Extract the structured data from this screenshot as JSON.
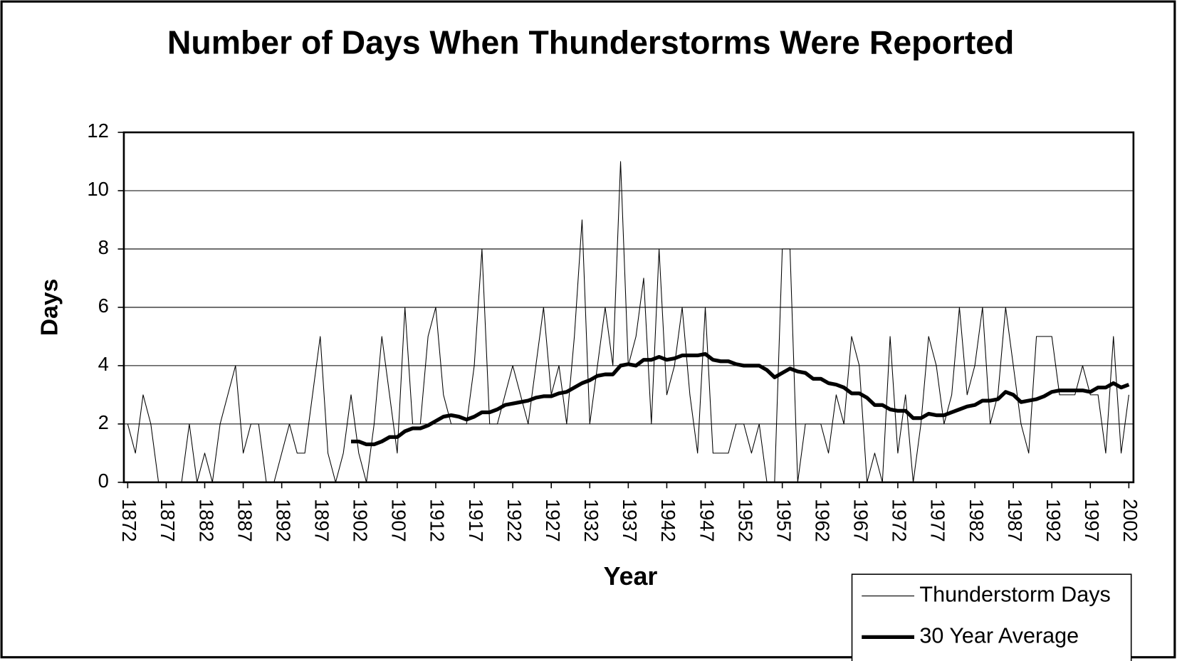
{
  "chart_data": {
    "type": "line",
    "title": "Number of Days When Thunderstorms Were Reported",
    "x_label": "Year",
    "y_label": "Days",
    "x": [
      1872,
      1873,
      1874,
      1875,
      1876,
      1877,
      1878,
      1879,
      1880,
      1881,
      1882,
      1883,
      1884,
      1885,
      1886,
      1887,
      1888,
      1889,
      1890,
      1891,
      1892,
      1893,
      1894,
      1895,
      1896,
      1897,
      1898,
      1899,
      1900,
      1901,
      1902,
      1903,
      1904,
      1905,
      1906,
      1907,
      1908,
      1909,
      1910,
      1911,
      1912,
      1913,
      1914,
      1915,
      1916,
      1917,
      1918,
      1919,
      1920,
      1921,
      1922,
      1923,
      1924,
      1925,
      1926,
      1927,
      1928,
      1929,
      1930,
      1931,
      1932,
      1933,
      1934,
      1935,
      1936,
      1937,
      1938,
      1939,
      1940,
      1941,
      1942,
      1943,
      1944,
      1945,
      1946,
      1947,
      1948,
      1949,
      1950,
      1951,
      1952,
      1953,
      1954,
      1955,
      1956,
      1957,
      1958,
      1959,
      1960,
      1961,
      1962,
      1963,
      1964,
      1965,
      1966,
      1967,
      1968,
      1969,
      1970,
      1971,
      1972,
      1973,
      1974,
      1975,
      1976,
      1977,
      1978,
      1979,
      1980,
      1981,
      1982,
      1983,
      1984,
      1985,
      1986,
      1987,
      1988,
      1989,
      1990,
      1991,
      1992,
      1993,
      1994,
      1995,
      1996,
      1997,
      1998,
      1999,
      2000,
      2001,
      2002
    ],
    "series": [
      {
        "name": "Thunderstorm Days",
        "color": "#000000",
        "width": 1,
        "values": [
          2,
          1,
          3,
          2,
          0,
          0,
          0,
          0,
          2,
          0,
          1,
          0,
          2,
          3,
          4,
          1,
          2,
          2,
          0,
          0,
          1,
          2,
          1,
          1,
          3,
          5,
          1,
          0,
          1,
          3,
          1,
          0,
          2,
          5,
          3,
          1,
          6,
          2,
          2,
          5,
          6,
          3,
          2,
          2,
          2,
          4,
          8,
          2,
          2,
          3,
          4,
          3,
          2,
          4,
          6,
          3,
          4,
          2,
          5,
          9,
          2,
          4,
          6,
          4,
          11,
          4,
          5,
          7,
          2,
          8,
          3,
          4,
          6,
          3,
          1,
          6,
          1,
          1,
          1,
          2,
          2,
          1,
          2,
          0,
          0,
          8,
          8,
          0,
          2,
          2,
          2,
          1,
          3,
          2,
          5,
          4,
          0,
          1,
          0,
          5,
          1,
          3,
          0,
          2,
          5,
          4,
          2,
          3,
          6,
          3,
          4,
          6,
          2,
          3,
          6,
          4,
          2,
          1,
          5,
          5,
          5,
          3,
          3,
          3,
          4,
          3,
          3,
          1,
          5,
          1,
          3
        ]
      },
      {
        "name": "30 Year Average",
        "color": "#000000",
        "width": 5,
        "values": [
          null,
          null,
          null,
          null,
          null,
          null,
          null,
          null,
          null,
          null,
          null,
          null,
          null,
          null,
          null,
          null,
          null,
          null,
          null,
          null,
          null,
          null,
          null,
          null,
          null,
          null,
          null,
          null,
          null,
          1.4,
          1.4,
          1.3,
          1.3,
          1.4,
          1.55,
          1.55,
          1.75,
          1.85,
          1.85,
          1.95,
          2.1,
          2.25,
          2.3,
          2.25,
          2.15,
          2.25,
          2.4,
          2.4,
          2.5,
          2.65,
          2.7,
          2.75,
          2.8,
          2.9,
          2.95,
          2.95,
          3.05,
          3.1,
          3.25,
          3.4,
          3.5,
          3.65,
          3.7,
          3.7,
          4.0,
          4.05,
          4.0,
          4.2,
          4.2,
          4.3,
          4.2,
          4.25,
          4.35,
          4.35,
          4.35,
          4.4,
          4.2,
          4.15,
          4.15,
          4.05,
          4.0,
          4.0,
          4.0,
          3.85,
          3.6,
          3.75,
          3.9,
          3.8,
          3.75,
          3.55,
          3.55,
          3.4,
          3.35,
          3.25,
          3.05,
          3.05,
          2.9,
          2.65,
          2.65,
          2.5,
          2.45,
          2.45,
          2.2,
          2.2,
          2.35,
          2.3,
          2.3,
          2.4,
          2.5,
          2.6,
          2.65,
          2.8,
          2.8,
          2.85,
          3.1,
          3.0,
          2.75,
          2.8,
          2.85,
          2.95,
          3.1,
          3.15,
          3.15,
          3.15,
          3.15,
          3.1,
          3.25,
          3.25,
          3.4,
          3.25,
          3.35
        ]
      }
    ],
    "xlim": [
      1871.5,
      2002.6
    ],
    "xticks": [
      1872,
      1877,
      1882,
      1887,
      1892,
      1897,
      1902,
      1907,
      1912,
      1917,
      1922,
      1927,
      1932,
      1937,
      1942,
      1947,
      1952,
      1957,
      1962,
      1967,
      1972,
      1977,
      1982,
      1987,
      1992,
      1997,
      2002
    ],
    "ylim": [
      0,
      12
    ],
    "yticks": [
      0,
      2,
      4,
      6,
      8,
      10,
      12
    ],
    "grid": true,
    "legend": "bottom-right"
  }
}
